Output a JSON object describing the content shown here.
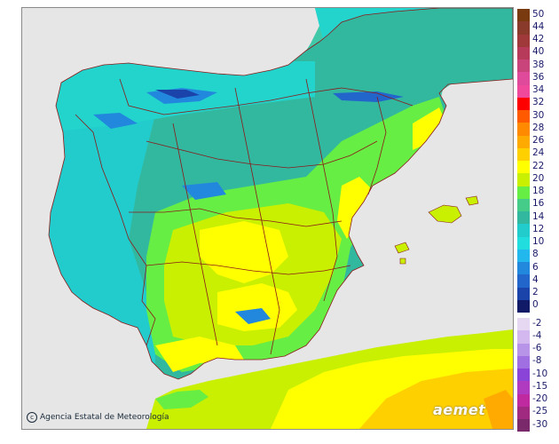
{
  "credit": {
    "icon": "copyright-icon",
    "text": "Agencia Estatal de Meteorología"
  },
  "logo": {
    "text": "aemet"
  },
  "legend": {
    "positive": [
      {
        "label": "50",
        "color": "#7a3a10"
      },
      {
        "label": "44",
        "color": "#8a3a2a"
      },
      {
        "label": "42",
        "color": "#a03a3a"
      },
      {
        "label": "40",
        "color": "#b83a5a"
      },
      {
        "label": "38",
        "color": "#c8447a"
      },
      {
        "label": "36",
        "color": "#e04a9a"
      },
      {
        "label": "34",
        "color": "#f0489a"
      },
      {
        "label": "32",
        "color": "#ff0000"
      },
      {
        "label": "30",
        "color": "#ff5a00"
      },
      {
        "label": "28",
        "color": "#ff8a00"
      },
      {
        "label": "26",
        "color": "#ffaa00"
      },
      {
        "label": "24",
        "color": "#ffd000"
      },
      {
        "label": "22",
        "color": "#ffff00"
      },
      {
        "label": "20",
        "color": "#c8f000"
      },
      {
        "label": "18",
        "color": "#66ee44"
      },
      {
        "label": "16",
        "color": "#44cc88"
      },
      {
        "label": "14",
        "color": "#33b8a0"
      },
      {
        "label": "12",
        "color": "#22cccc"
      },
      {
        "label": "10",
        "color": "#22dddd"
      },
      {
        "label": "8",
        "color": "#22b8ee"
      },
      {
        "label": "6",
        "color": "#2288dd"
      },
      {
        "label": "4",
        "color": "#2266cc"
      },
      {
        "label": "2",
        "color": "#1a44aa"
      },
      {
        "label": "0",
        "color": "#101a66"
      }
    ],
    "negative": [
      {
        "label": "-2",
        "color": "#e6d8f2"
      },
      {
        "label": "-4",
        "color": "#d2b8ee"
      },
      {
        "label": "-6",
        "color": "#b894e8"
      },
      {
        "label": "-8",
        "color": "#a070e2"
      },
      {
        "label": "-10",
        "color": "#8a44d8"
      },
      {
        "label": "-15",
        "color": "#b03ac0"
      },
      {
        "label": "-20",
        "color": "#c02aa0"
      },
      {
        "label": "-25",
        "color": "#a02a80"
      },
      {
        "label": "-30",
        "color": "#7a2a6a"
      }
    ]
  }
}
